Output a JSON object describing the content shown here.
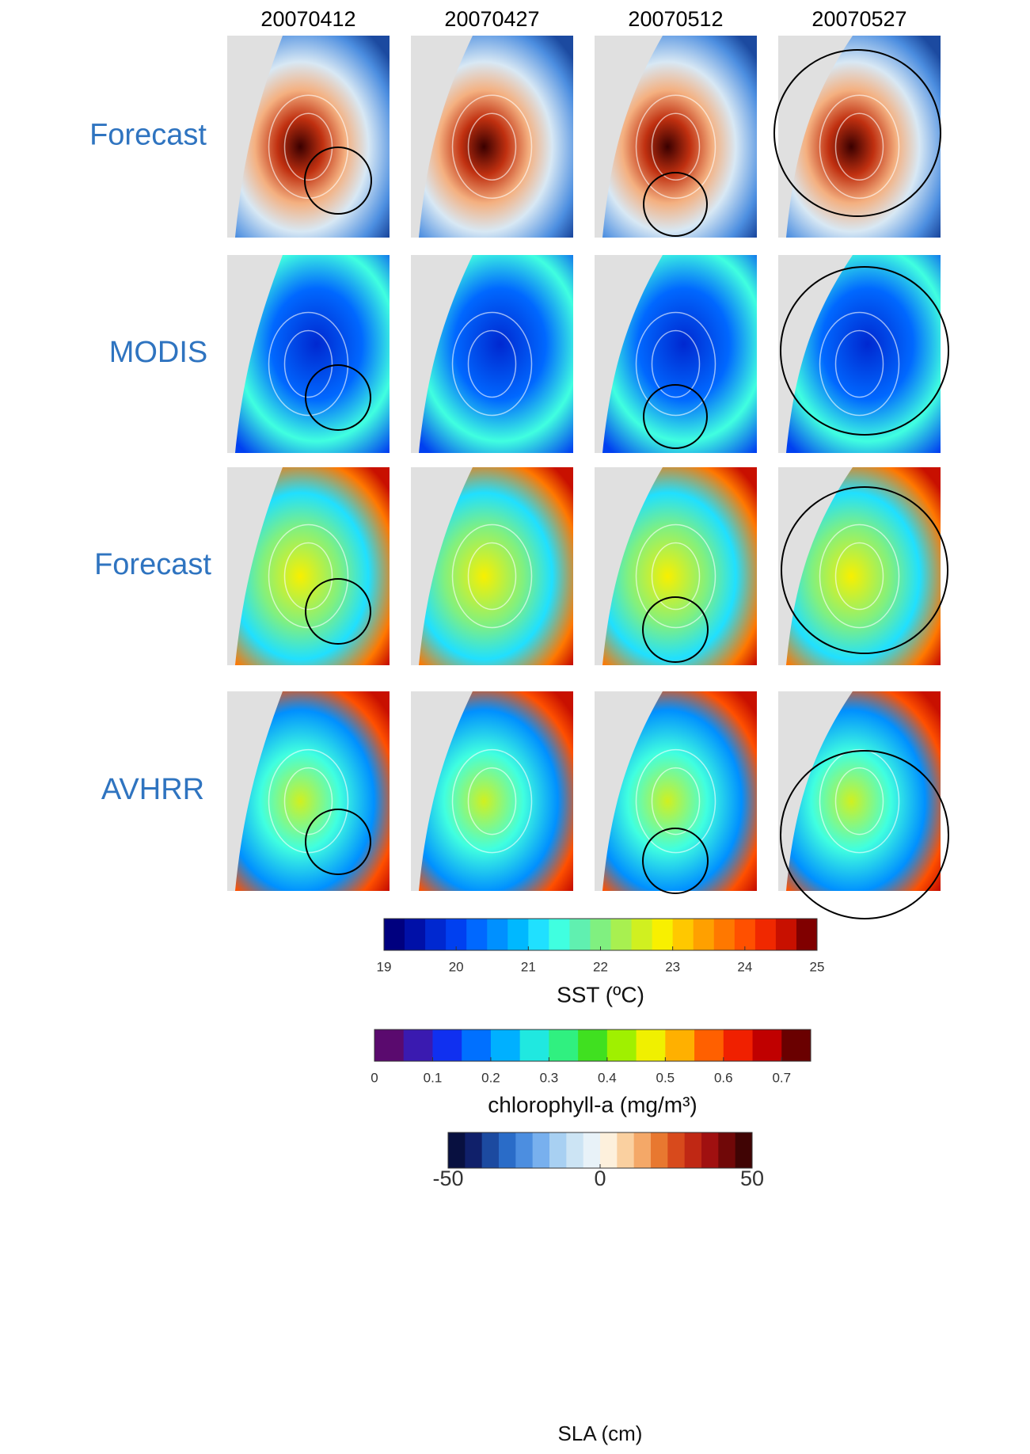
{
  "columns": [
    "20070412",
    "20070427",
    "20070512",
    "20070527"
  ],
  "rows": [
    "Forecast",
    "MODIS",
    "Forecast",
    "AVHRR"
  ],
  "colorbars": [
    {
      "title": "SST (ºC)",
      "lim": [
        19,
        25
      ],
      "ticks": [
        19,
        20,
        21,
        22,
        23,
        24,
        25
      ],
      "colors": [
        "#00007f",
        "#0010a8",
        "#0028d0",
        "#0040f0",
        "#0068ff",
        "#0090ff",
        "#00b8ff",
        "#20e0ff",
        "#40ffe0",
        "#60f0b0",
        "#80f080",
        "#a8f050",
        "#d0f020",
        "#f8f000",
        "#ffc800",
        "#ffa000",
        "#ff7800",
        "#ff5000",
        "#f02800",
        "#c81000",
        "#800000"
      ]
    },
    {
      "title": "chlorophyll-a (mg/m³)",
      "lim": [
        0,
        0.75
      ],
      "ticks": [
        0,
        0.1,
        0.2,
        0.3,
        0.4,
        0.5,
        0.6,
        0.7
      ],
      "colors": [
        "#5a0a6e",
        "#3a1ab0",
        "#1030f0",
        "#0070ff",
        "#00b0ff",
        "#20e8e0",
        "#30f080",
        "#40e020",
        "#a0f000",
        "#f0f000",
        "#ffb000",
        "#ff6000",
        "#f02000",
        "#c00000",
        "#6a0000"
      ]
    },
    {
      "title": "SLA (cm)",
      "lim": [
        -50,
        50
      ],
      "ticks": [
        -50,
        0,
        50
      ],
      "colors": [
        "#081040",
        "#10206a",
        "#1c4aa0",
        "#2a6cc8",
        "#4c8ee0",
        "#78b0ee",
        "#a8d0f2",
        "#cce4f4",
        "#e8f2f8",
        "#fdf0dc",
        "#fad0a0",
        "#f4a868",
        "#e87830",
        "#d84a1c",
        "#c02814",
        "#a01010",
        "#700808",
        "#400404"
      ]
    }
  ]
}
